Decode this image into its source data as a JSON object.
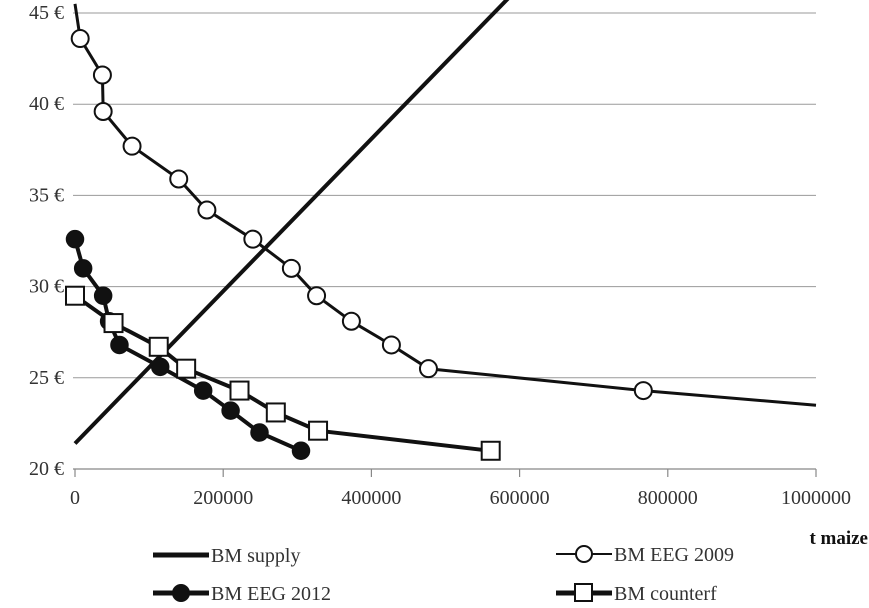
{
  "chart_data": {
    "type": "line",
    "xlabel": "t maize",
    "ylabel": "",
    "xlim": [
      0,
      1000000
    ],
    "ylim": [
      20,
      45
    ],
    "x_ticks": [
      "0",
      "200000",
      "400000",
      "600000",
      "800000",
      "1000000"
    ],
    "y_ticks": [
      "20 €",
      "25 €",
      "30 €",
      "35 €",
      "40 €",
      "45 €"
    ],
    "grid": "horizontal",
    "legend_position": "bottom",
    "series": [
      {
        "name": "BM supply",
        "marker": "none",
        "points": [
          [
            0,
            21.4
          ],
          [
            630000,
            47.7
          ]
        ]
      },
      {
        "name": "BM EEG 2009",
        "marker": "open-circle",
        "points": [
          [
            0,
            45.5
          ],
          [
            7000,
            43.6
          ],
          [
            37000,
            41.6
          ],
          [
            38000,
            39.6
          ],
          [
            77000,
            37.7
          ],
          [
            140000,
            35.9
          ],
          [
            178000,
            34.2
          ],
          [
            240000,
            32.6
          ],
          [
            292000,
            31.0
          ],
          [
            326000,
            29.5
          ],
          [
            373000,
            28.1
          ],
          [
            427000,
            26.8
          ],
          [
            477000,
            25.5
          ],
          [
            767000,
            24.3
          ],
          [
            1000000,
            23.5
          ]
        ],
        "marked": [
          false,
          true,
          true,
          true,
          true,
          true,
          true,
          true,
          true,
          true,
          true,
          true,
          true,
          true,
          false
        ]
      },
      {
        "name": "BM EEG 2012",
        "marker": "filled-circle",
        "points": [
          [
            0,
            32.6
          ],
          [
            11000,
            31.0
          ],
          [
            38000,
            29.5
          ],
          [
            46000,
            28.1
          ],
          [
            60000,
            26.8
          ],
          [
            115000,
            25.6
          ],
          [
            173000,
            24.3
          ],
          [
            210000,
            23.2
          ],
          [
            249000,
            22.0
          ],
          [
            305000,
            21.0
          ]
        ]
      },
      {
        "name": "BM counterf",
        "marker": "open-square",
        "points": [
          [
            0,
            29.5
          ],
          [
            52000,
            28.0
          ],
          [
            113000,
            26.7
          ],
          [
            150000,
            25.5
          ],
          [
            222000,
            24.3
          ],
          [
            271000,
            23.1
          ],
          [
            328000,
            22.1
          ],
          [
            561000,
            21.0
          ]
        ]
      }
    ]
  },
  "legend": {
    "supply": "BM supply",
    "eeg2009": "BM EEG 2009",
    "eeg2012": "BM EEG 2012",
    "counterf": "BM counterf"
  }
}
